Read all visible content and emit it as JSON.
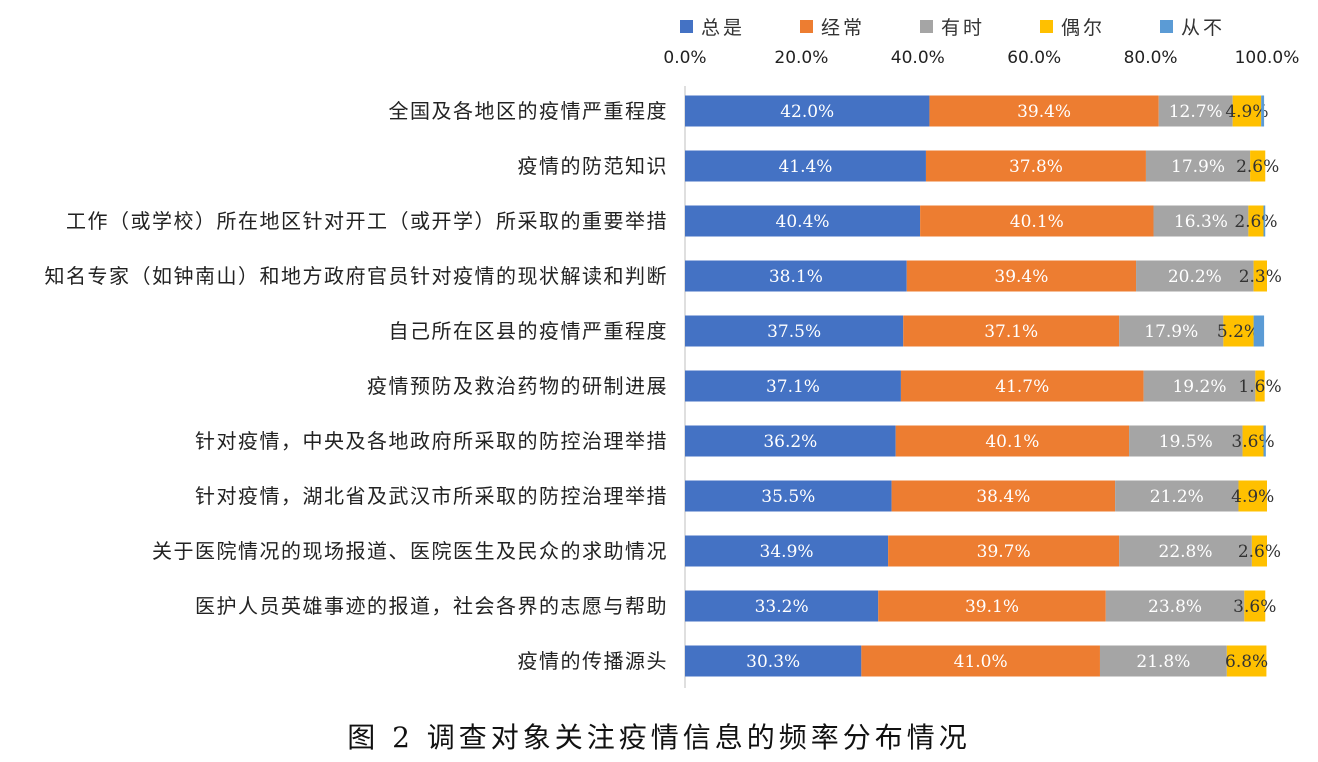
{
  "chart_data": {
    "type": "bar",
    "orientation": "horizontal",
    "stacked": true,
    "xlim": [
      0,
      100
    ],
    "x_tick_labels": [
      "0.0%",
      "20.0%",
      "40.0%",
      "60.0%",
      "80.0%",
      "100.0%"
    ],
    "x_axis_position": "top",
    "legend_position": "top",
    "grid": false,
    "categories": [
      "全国及各地区的疫情严重程度",
      "疫情的防范知识",
      "工作（或学校）所在地区针对开工（或开学）所采取的重要举措",
      "知名专家（如钟南山）和地方政府官员针对疫情的现状解读和判断",
      "自己所在区县的疫情严重程度",
      "疫情预防及救治药物的研制进展",
      "针对疫情，中央及各地政府所采取的防控治理举措",
      "针对疫情，湖北省及武汉市所采取的防控治理举措",
      "关于医院情况的现场报道、医院医生及民众的求助情况",
      "医护人员英雄事迹的报道，社会各界的志愿与帮助",
      "疫情的传播源头"
    ],
    "series": [
      {
        "name": "总是",
        "color": "#4472C4",
        "values": [
          42.0,
          41.4,
          40.4,
          38.1,
          37.5,
          37.1,
          36.2,
          35.5,
          34.9,
          33.2,
          30.3
        ],
        "labels": [
          "42.0%",
          "41.4%",
          "40.4%",
          "38.1%",
          "37.5%",
          "37.1%",
          "36.2%",
          "35.5%",
          "34.9%",
          "33.2%",
          "30.3%"
        ]
      },
      {
        "name": "经常",
        "color": "#ED7D31",
        "values": [
          39.4,
          37.8,
          40.1,
          39.4,
          37.1,
          41.7,
          40.1,
          38.4,
          39.7,
          39.1,
          41.0
        ],
        "labels": [
          "39.4%",
          "37.8%",
          "40.1%",
          "39.4%",
          "37.1%",
          "41.7%",
          "40.1%",
          "38.4%",
          "39.7%",
          "39.1%",
          "41.0%"
        ]
      },
      {
        "name": "有时",
        "color": "#A5A5A5",
        "values": [
          12.7,
          17.9,
          16.3,
          20.2,
          17.9,
          19.2,
          19.5,
          21.2,
          22.8,
          23.8,
          21.8
        ],
        "labels": [
          "12.7%",
          "17.9%",
          "16.3%",
          "20.2%",
          "17.9%",
          "19.2%",
          "19.5%",
          "21.2%",
          "22.8%",
          "23.8%",
          "21.8%"
        ]
      },
      {
        "name": "偶尔",
        "color": "#FFC000",
        "values": [
          4.9,
          2.6,
          2.6,
          2.3,
          5.2,
          1.6,
          3.6,
          4.9,
          2.6,
          3.6,
          6.8
        ],
        "labels": [
          "4.9%",
          "2.6%",
          "2.6%",
          "2.3%",
          "5.2%",
          "1.6%",
          "3.6%",
          "4.9%",
          "2.6%",
          "3.6%",
          "6.8%"
        ]
      },
      {
        "name": "从不",
        "color": "#5B9BD5",
        "values": [
          0.5,
          0.0,
          0.3,
          0.0,
          1.8,
          0.0,
          0.4,
          0.0,
          0.0,
          0.0,
          0.0
        ]
      }
    ]
  },
  "caption": "图 2  调查对象关注疫情信息的频率分布情况"
}
